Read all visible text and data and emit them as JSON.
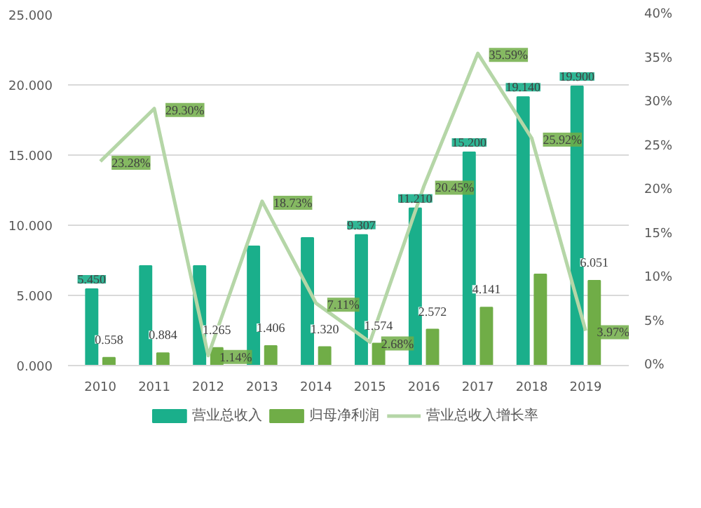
{
  "chart_data": {
    "type": "bar",
    "categories": [
      "2010",
      "2011",
      "2012",
      "2013",
      "2014",
      "2015",
      "2016",
      "2017",
      "2018",
      "2019"
    ],
    "series": [
      {
        "name": "营业总收入",
        "color": "#1aaf8b",
        "values": [
          5.45,
          7.1,
          7.1,
          8.5,
          9.1,
          9.307,
          11.21,
          15.2,
          19.14,
          19.9
        ],
        "value_labels": [
          "5.450",
          null,
          null,
          null,
          null,
          "9.307",
          "11.210",
          "15.200",
          "19.140",
          "19.900"
        ]
      },
      {
        "name": "归母净利润",
        "color": "#70ad47",
        "values": [
          0.558,
          0.884,
          1.265,
          1.406,
          1.32,
          1.574,
          2.572,
          4.141,
          6.5,
          6.051
        ],
        "value_labels": [
          "0.558",
          "0.884",
          "1.265",
          "1.406",
          "1.320",
          "1.574",
          "2.572",
          "4.141",
          null,
          "6.051"
        ]
      },
      {
        "name": "营业总收入增长率",
        "type": "line",
        "axis": "y2",
        "color": "#b5d6a7",
        "values": [
          23.28,
          29.3,
          1.14,
          18.73,
          7.11,
          2.68,
          20.45,
          35.59,
          25.92,
          3.97
        ],
        "value_labels": [
          "23.28%",
          "29.30%",
          "1.14%",
          "18.73%",
          "7.11%",
          "2.68%",
          "20.45%",
          "35.59%",
          "25.92%",
          "3.97%"
        ]
      }
    ],
    "ylim": [
      0,
      25
    ],
    "yticks": [
      {
        "value": 0,
        "label": "0.000"
      },
      {
        "value": 5,
        "label": "5.000"
      },
      {
        "value": 10,
        "label": "10.000"
      },
      {
        "value": 15,
        "label": "15.000"
      },
      {
        "value": 20,
        "label": "20.000"
      },
      {
        "value": 25,
        "label": "25.000"
      }
    ],
    "y2lim": [
      0,
      40
    ],
    "y2ticks": [
      {
        "value": 0,
        "label": "0%"
      },
      {
        "value": 5,
        "label": "5%"
      },
      {
        "value": 10,
        "label": "10%"
      },
      {
        "value": 15,
        "label": "15%"
      },
      {
        "value": 20,
        "label": "20%"
      },
      {
        "value": 25,
        "label": "25%"
      },
      {
        "value": 30,
        "label": "30%"
      },
      {
        "value": 35,
        "label": "35%"
      },
      {
        "value": 40,
        "label": "40%"
      }
    ],
    "grid": "y",
    "legend": "bottom"
  }
}
